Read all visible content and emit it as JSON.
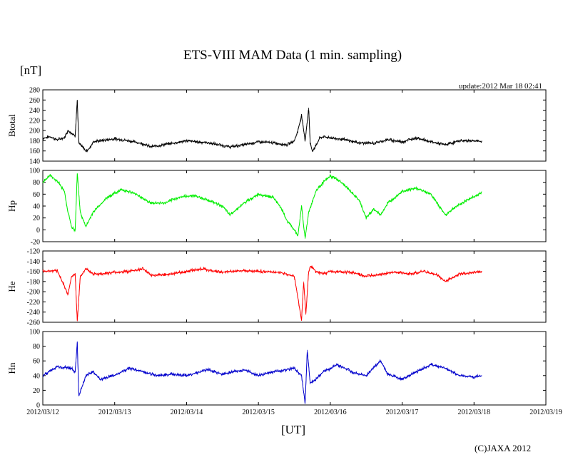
{
  "chart_data": {
    "type": "line",
    "title": "ETS-VIII MAM Data (1 min. sampling)",
    "unit_label": "[nT]",
    "update_label": "update:2012 Mar 18 02:41",
    "xlabel": "[UT]",
    "copyright": "(C)JAXA 2012",
    "x_ticks": [
      "2012/03/12",
      "2012/03/13",
      "2012/03/14",
      "2012/03/15",
      "2012/03/16",
      "2012/03/17",
      "2012/03/18",
      "2012/03/19"
    ],
    "xlim": [
      0,
      7
    ],
    "data_end_day": 6.11,
    "grid": false,
    "panels": [
      {
        "ylabel": "Btotal",
        "color": "#000000",
        "ylim": [
          140,
          280
        ],
        "y_ticks": [
          "280",
          "260",
          "240",
          "220",
          "200",
          "180",
          "160",
          "140"
        ],
        "x": [
          0,
          0.1,
          0.2,
          0.3,
          0.35,
          0.45,
          0.48,
          0.5,
          0.55,
          0.6,
          0.65,
          0.7,
          0.8,
          0.9,
          1.0,
          1.2,
          1.4,
          1.5,
          1.8,
          2.0,
          2.3,
          2.6,
          2.8,
          3.0,
          3.2,
          3.4,
          3.5,
          3.55,
          3.6,
          3.65,
          3.7,
          3.72,
          3.75,
          3.8,
          3.85,
          3.9,
          4.0,
          4.2,
          4.4,
          4.6,
          4.8,
          5.0,
          5.2,
          5.4,
          5.6,
          5.8,
          6.0,
          6.11
        ],
        "y": [
          185,
          188,
          182,
          186,
          200,
          190,
          260,
          175,
          168,
          160,
          165,
          178,
          180,
          182,
          184,
          180,
          174,
          168,
          175,
          180,
          176,
          168,
          172,
          178,
          176,
          172,
          180,
          200,
          230,
          180,
          245,
          175,
          160,
          170,
          185,
          188,
          186,
          182,
          176,
          175,
          182,
          178,
          186,
          178,
          172,
          180,
          180,
          178
        ]
      },
      {
        "ylabel": "Hp",
        "color": "#00ee00",
        "ylim": [
          -20,
          100
        ],
        "y_ticks": [
          "100",
          "80",
          "60",
          "40",
          "20",
          "0",
          "-20"
        ],
        "x": [
          0,
          0.1,
          0.2,
          0.3,
          0.35,
          0.4,
          0.45,
          0.48,
          0.52,
          0.6,
          0.7,
          0.9,
          1.1,
          1.3,
          1.5,
          1.7,
          1.9,
          2.1,
          2.3,
          2.5,
          2.6,
          2.8,
          3.0,
          3.2,
          3.3,
          3.4,
          3.5,
          3.55,
          3.6,
          3.65,
          3.7,
          3.8,
          3.9,
          4.0,
          4.1,
          4.2,
          4.4,
          4.5,
          4.6,
          4.7,
          4.8,
          5.0,
          5.2,
          5.4,
          5.6,
          5.7,
          5.9,
          6.1
        ],
        "y": [
          80,
          92,
          82,
          65,
          30,
          5,
          -2,
          95,
          30,
          5,
          30,
          55,
          68,
          60,
          45,
          45,
          55,
          58,
          50,
          40,
          25,
          45,
          60,
          55,
          40,
          15,
          0,
          -10,
          40,
          -15,
          30,
          65,
          80,
          90,
          85,
          75,
          50,
          20,
          35,
          25,
          45,
          65,
          70,
          60,
          25,
          35,
          50,
          62
        ]
      },
      {
        "ylabel": "He",
        "color": "#ff0000",
        "ylim": [
          -260,
          -120
        ],
        "y_ticks": [
          "-120",
          "-140",
          "-160",
          "-180",
          "-200",
          "-220",
          "-240",
          "-260"
        ],
        "x": [
          0,
          0.2,
          0.35,
          0.4,
          0.45,
          0.48,
          0.52,
          0.6,
          0.7,
          0.8,
          1.0,
          1.2,
          1.4,
          1.5,
          1.8,
          2.0,
          2.2,
          2.5,
          2.8,
          3.0,
          3.3,
          3.5,
          3.6,
          3.63,
          3.66,
          3.7,
          3.73,
          3.8,
          3.9,
          4.0,
          4.3,
          4.5,
          4.7,
          4.9,
          5.1,
          5.3,
          5.5,
          5.6,
          5.8,
          6.0,
          6.11
        ],
        "y": [
          -160,
          -158,
          -205,
          -170,
          -165,
          -258,
          -170,
          -155,
          -165,
          -165,
          -162,
          -160,
          -155,
          -168,
          -165,
          -160,
          -155,
          -162,
          -158,
          -160,
          -162,
          -170,
          -255,
          -180,
          -245,
          -160,
          -150,
          -160,
          -165,
          -160,
          -162,
          -170,
          -165,
          -162,
          -165,
          -160,
          -168,
          -180,
          -165,
          -162,
          -160
        ]
      },
      {
        "ylabel": "Hn",
        "color": "#0000cc",
        "ylim": [
          0,
          100
        ],
        "y_ticks": [
          "100",
          "80",
          "60",
          "40",
          "20",
          "0"
        ],
        "x": [
          0,
          0.2,
          0.4,
          0.45,
          0.48,
          0.5,
          0.6,
          0.7,
          0.8,
          1.0,
          1.2,
          1.4,
          1.6,
          1.8,
          2.0,
          2.3,
          2.5,
          2.8,
          3.0,
          3.2,
          3.5,
          3.6,
          3.65,
          3.68,
          3.72,
          3.8,
          3.9,
          4.1,
          4.3,
          4.5,
          4.7,
          4.8,
          5.0,
          5.2,
          5.4,
          5.6,
          5.8,
          6.0,
          6.11
        ],
        "y": [
          40,
          52,
          50,
          45,
          85,
          12,
          40,
          45,
          35,
          40,
          50,
          45,
          40,
          42,
          40,
          48,
          42,
          48,
          40,
          45,
          50,
          40,
          2,
          75,
          30,
          35,
          45,
          55,
          45,
          40,
          60,
          42,
          35,
          45,
          55,
          50,
          40,
          38,
          40
        ]
      }
    ]
  }
}
